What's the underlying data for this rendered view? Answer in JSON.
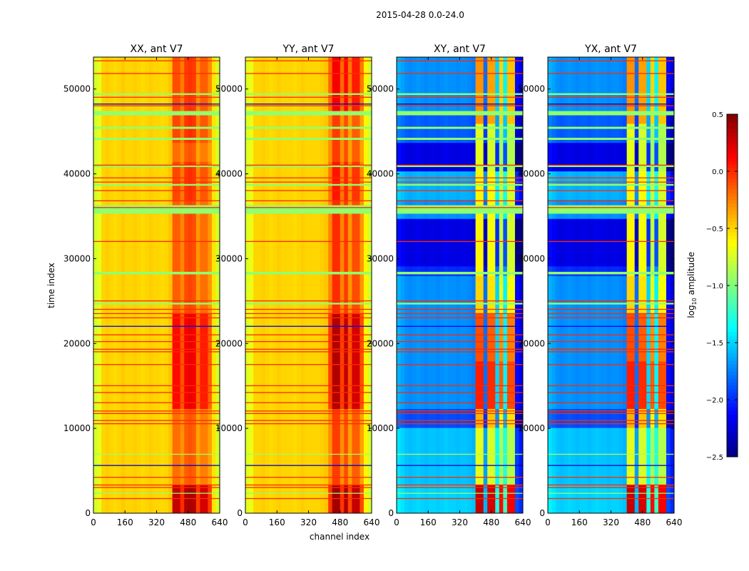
{
  "chart_data": {
    "type": "heatmap",
    "title": "2015-04-28 0.0-24.0",
    "xlabel": "channel index",
    "ylabel": "time index",
    "xlim": [
      0,
      640
    ],
    "ylim": [
      0,
      53760
    ],
    "xticks": [
      "0",
      "160",
      "320",
      "480",
      "640"
    ],
    "xtick_values": [
      0,
      160,
      320,
      480,
      640
    ],
    "yticks": [
      "0",
      "10000",
      "20000",
      "30000",
      "40000",
      "50000"
    ],
    "ytick_values": [
      0,
      10000,
      20000,
      30000,
      40000,
      50000
    ],
    "colorbar": {
      "label_main": "log",
      "label_sub": "10",
      "label_rest": " amplitude",
      "clim": [
        -2.5,
        0.5
      ],
      "ticks": [
        "0.5",
        "0.0",
        "−0.5",
        "−1.0",
        "−1.5",
        "−2.0",
        "−2.5"
      ],
      "tick_values": [
        0.5,
        0.0,
        -0.5,
        -1.0,
        -1.5,
        -2.0,
        -2.5
      ],
      "colormap": "jet"
    },
    "channel_bin_width": 20,
    "time_bin_width": 1120,
    "panels": [
      {
        "title": "XX, ant V7",
        "col_base": [
          -0.75,
          -0.7,
          -0.5,
          -0.48,
          -0.5,
          -0.52,
          -0.5,
          -0.47,
          -0.5,
          -0.5,
          -0.48,
          -0.5,
          -0.52,
          -0.5,
          -0.48,
          -0.5,
          -0.5,
          -0.52,
          -0.5,
          -0.45,
          -0.2,
          -0.2,
          -0.3,
          -0.15,
          -0.12,
          -0.15,
          -0.35,
          -0.25,
          -0.25,
          -0.35,
          -0.55,
          -0.75
        ],
        "hot_cols": [
          0,
          0,
          0,
          0,
          0,
          0,
          0,
          0,
          0,
          0,
          0,
          0,
          0,
          0,
          0,
          0,
          0,
          0,
          0,
          0,
          1,
          1,
          0.6,
          1,
          1,
          1,
          0.6,
          1,
          1,
          0.6,
          0,
          0
        ],
        "row_segments": [
          [
            0,
            53760,
            0
          ]
        ],
        "heat_segments": [
          [
            0,
            3500,
            0.5
          ],
          [
            3500,
            12000,
            0
          ],
          [
            12000,
            23000,
            0.3
          ],
          [
            23000,
            37000,
            0.05
          ],
          [
            37000,
            41000,
            0.12
          ],
          [
            41000,
            44000,
            0
          ],
          [
            44000,
            47000,
            0.12
          ],
          [
            47000,
            53760,
            0.1
          ]
        ]
      },
      {
        "title": "YY, ant V7",
        "col_base": [
          -0.72,
          -0.68,
          -0.5,
          -0.5,
          -0.48,
          -0.5,
          -0.52,
          -0.5,
          -0.48,
          -0.5,
          -0.5,
          -0.5,
          -0.52,
          -0.5,
          -0.48,
          -0.5,
          -0.5,
          -0.5,
          -0.5,
          -0.48,
          -0.45,
          -0.3,
          -0.05,
          -0.05,
          -0.3,
          -0.1,
          -0.35,
          -0.15,
          -0.15,
          -0.35,
          -0.6,
          -0.75
        ],
        "hot_cols": [
          0,
          0,
          0,
          0,
          0,
          0,
          0,
          0,
          0,
          0,
          0,
          0,
          0,
          0,
          0,
          0,
          0,
          0,
          0,
          0,
          0,
          0.6,
          1,
          1,
          0.6,
          1,
          0.6,
          1,
          1,
          0.6,
          0,
          0
        ],
        "row_segments": [
          [
            0,
            53760,
            0
          ]
        ],
        "heat_segments": [
          [
            0,
            3500,
            0.45
          ],
          [
            3500,
            12000,
            0
          ],
          [
            12000,
            23000,
            0.4
          ],
          [
            23000,
            37000,
            0.05
          ],
          [
            37000,
            41000,
            0.12
          ],
          [
            41000,
            47000,
            0
          ],
          [
            47000,
            53760,
            0.2
          ]
        ]
      },
      {
        "title": "XY, ant V7",
        "col_base": [
          -1.6,
          -1.65,
          -1.7,
          -1.72,
          -1.7,
          -1.68,
          -1.7,
          -1.72,
          -1.7,
          -1.7,
          -1.72,
          -1.7,
          -1.68,
          -1.7,
          -1.7,
          -1.72,
          -1.7,
          -1.7,
          -1.72,
          -1.75,
          -0.7,
          -0.7,
          -1.8,
          -0.75,
          -0.75,
          -1.5,
          -0.9,
          -1.4,
          -0.85,
          -0.85,
          -2.1,
          -2.2
        ],
        "hot_cols": [
          0,
          0,
          0,
          0,
          0,
          0,
          0,
          0,
          0,
          0,
          0,
          0,
          0,
          0,
          0,
          0,
          0,
          0,
          0,
          0,
          1,
          1,
          0,
          1,
          1,
          0,
          1,
          0,
          1,
          1,
          0,
          0
        ],
        "row_segments": [
          [
            0,
            3500,
            0.2
          ],
          [
            3500,
            10000,
            0.15
          ],
          [
            10000,
            12500,
            -0.2
          ],
          [
            12500,
            28000,
            0
          ],
          [
            28000,
            29500,
            -0.3
          ],
          [
            29500,
            35000,
            -0.5
          ],
          [
            35000,
            37000,
            0
          ],
          [
            37000,
            40500,
            0.1
          ],
          [
            40500,
            44000,
            -0.5
          ],
          [
            44000,
            46500,
            -0.15
          ],
          [
            46500,
            47000,
            -0.5
          ],
          [
            47000,
            53760,
            0
          ]
        ],
        "heat_segments": [
          [
            0,
            3500,
            1.0
          ],
          [
            3500,
            10000,
            0
          ],
          [
            10000,
            12500,
            0.3
          ],
          [
            12500,
            17500,
            0.75
          ],
          [
            17500,
            23000,
            0.6
          ],
          [
            23000,
            28000,
            0.2
          ],
          [
            28000,
            40000,
            0.1
          ],
          [
            40000,
            46000,
            0
          ],
          [
            46000,
            53760,
            0.4
          ]
        ]
      },
      {
        "title": "YX, ant V7",
        "col_base": [
          -1.6,
          -1.65,
          -1.7,
          -1.72,
          -1.7,
          -1.68,
          -1.7,
          -1.72,
          -1.7,
          -1.7,
          -1.72,
          -1.7,
          -1.68,
          -1.7,
          -1.7,
          -1.72,
          -1.7,
          -1.7,
          -1.72,
          -1.75,
          -0.7,
          -0.7,
          -1.8,
          -0.75,
          -0.75,
          -1.5,
          -0.9,
          -1.4,
          -0.85,
          -0.85,
          -2.1,
          -2.2
        ],
        "hot_cols": [
          0,
          0,
          0,
          0,
          0,
          0,
          0,
          0,
          0,
          0,
          0,
          0,
          0,
          0,
          0,
          0,
          0,
          0,
          0,
          0,
          1,
          1,
          0,
          1,
          1,
          0,
          1,
          0,
          1,
          1,
          0,
          0
        ],
        "row_segments": [
          [
            0,
            3500,
            0.2
          ],
          [
            3500,
            10000,
            0.15
          ],
          [
            10000,
            12500,
            -0.2
          ],
          [
            12500,
            28000,
            0
          ],
          [
            28000,
            29500,
            -0.3
          ],
          [
            29500,
            35000,
            -0.5
          ],
          [
            35000,
            37000,
            0
          ],
          [
            37000,
            40500,
            0.1
          ],
          [
            40500,
            44000,
            -0.5
          ],
          [
            44000,
            46500,
            -0.15
          ],
          [
            46500,
            47000,
            -0.5
          ],
          [
            47000,
            53760,
            0
          ]
        ],
        "heat_segments": [
          [
            0,
            3500,
            1.0
          ],
          [
            3500,
            10000,
            0
          ],
          [
            10000,
            12500,
            0.3
          ],
          [
            12500,
            17500,
            0.75
          ],
          [
            17500,
            23000,
            0.6
          ],
          [
            23000,
            28000,
            0.2
          ],
          [
            28000,
            40000,
            0.1
          ],
          [
            40000,
            46000,
            0
          ],
          [
            46000,
            53760,
            0.4
          ]
        ]
      }
    ],
    "flags": [
      [
        35300,
        36300,
        -0.95
      ],
      [
        46900,
        47400,
        -0.95
      ],
      [
        45300,
        45550,
        -0.95
      ],
      [
        44000,
        44250,
        -0.95
      ],
      [
        28150,
        28450,
        -0.95
      ],
      [
        24600,
        24800,
        -0.95
      ],
      [
        38600,
        38800,
        -0.95
      ],
      [
        40800,
        41000,
        -0.95
      ],
      [
        49300,
        49500,
        -0.95
      ],
      [
        6900,
        7000,
        -0.9
      ],
      [
        2300,
        2400,
        -0.95
      ],
      [
        1700,
        1780,
        0.0
      ],
      [
        3000,
        3080,
        0.0
      ],
      [
        3300,
        3380,
        0.0
      ],
      [
        4200,
        4280,
        0.0
      ],
      [
        10500,
        10600,
        0.0
      ],
      [
        10900,
        10980,
        0.0
      ],
      [
        11700,
        11800,
        0.0
      ],
      [
        12000,
        12100,
        0.0
      ],
      [
        13000,
        13080,
        0.0
      ],
      [
        14200,
        14280,
        0.0
      ],
      [
        15000,
        15080,
        0.0
      ],
      [
        17500,
        17580,
        0.0
      ],
      [
        19000,
        19080,
        0.0
      ],
      [
        19300,
        19380,
        0.0
      ],
      [
        20200,
        20280,
        0.0
      ],
      [
        21000,
        21080,
        0.0
      ],
      [
        23000,
        23080,
        0.0
      ],
      [
        23500,
        23580,
        0.0
      ],
      [
        24000,
        24080,
        0.0
      ],
      [
        25000,
        25080,
        0.0
      ],
      [
        32000,
        32080,
        0.0
      ],
      [
        36000,
        36080,
        0.0
      ],
      [
        36800,
        36880,
        0.0
      ],
      [
        38000,
        38080,
        0.0
      ],
      [
        39000,
        39080,
        0.0
      ],
      [
        39500,
        39580,
        0.0
      ],
      [
        41000,
        41080,
        0.0
      ],
      [
        48000,
        48080,
        0.0
      ],
      [
        49000,
        49080,
        0.0
      ],
      [
        51800,
        51880,
        0.0
      ],
      [
        53300,
        53380,
        0.0
      ],
      [
        5600,
        5680,
        -2.3
      ],
      [
        22000,
        22080,
        -2.2
      ],
      [
        48200,
        48280,
        -2.3
      ]
    ]
  }
}
